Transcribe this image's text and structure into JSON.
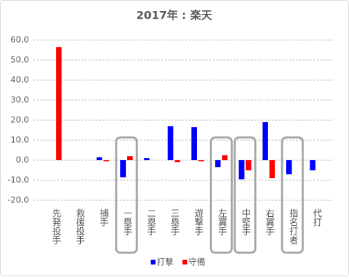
{
  "chart_data": {
    "type": "bar",
    "title": "2017年 : 楽天",
    "categories": [
      "先発投手",
      "救援投手",
      "捕手",
      "一塁手",
      "二塁手",
      "三塁手",
      "遊撃手",
      "左翼手",
      "中堅手",
      "右翼手",
      "指名打者",
      "代打"
    ],
    "series": [
      {
        "name": "打撃",
        "color": "#0000ff",
        "values": [
          null,
          null,
          1.5,
          -8.5,
          1,
          17,
          16.5,
          -3.5,
          -9.5,
          19,
          -7,
          -5
        ]
      },
      {
        "name": "守備",
        "color": "#ff0000",
        "values": [
          56.5,
          null,
          -0.5,
          2,
          null,
          -1,
          -0.5,
          2.5,
          -5,
          -9,
          null,
          null
        ]
      }
    ],
    "ylim": [
      -20,
      60
    ],
    "yticks": [
      {
        "value": -20,
        "label": "-20.0"
      },
      {
        "value": -10,
        "label": "-10.0"
      },
      {
        "value": 0,
        "label": "0.0"
      },
      {
        "value": 10,
        "label": "10.0"
      },
      {
        "value": 20,
        "label": "20.0"
      },
      {
        "value": 30,
        "label": "30.0"
      },
      {
        "value": 40,
        "label": "40.0"
      },
      {
        "value": 50,
        "label": "50.0"
      },
      {
        "value": 60,
        "label": "60.0"
      }
    ],
    "grid": true,
    "legend": "bottom",
    "highlight_indices": [
      3,
      7,
      8,
      10
    ]
  }
}
